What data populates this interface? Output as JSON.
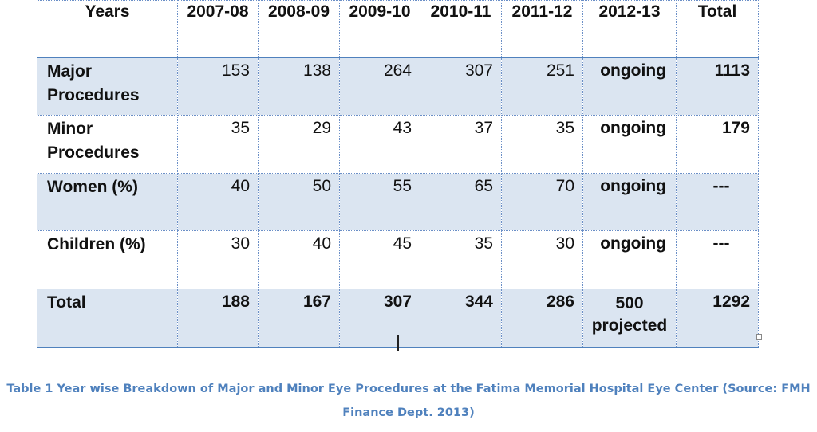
{
  "table": {
    "headers": [
      "Years",
      "2007-08",
      "2008-09",
      "2009-10",
      "2010-11",
      "2011-12",
      "2012-13",
      "Total"
    ],
    "rows": [
      {
        "label_line1": "Major",
        "label_line2": "Procedures",
        "values": [
          "153",
          "138",
          "264",
          "307",
          "251"
        ],
        "status": "ongoing",
        "total": "1113"
      },
      {
        "label_line1": "Minor",
        "label_line2": "Procedures",
        "values": [
          "35",
          "29",
          "43",
          "37",
          "35"
        ],
        "status": "ongoing",
        "total": "179"
      },
      {
        "label_line1": "Women (%)",
        "label_line2": "",
        "values": [
          "40",
          "50",
          "55",
          "65",
          "70"
        ],
        "status": "ongoing",
        "total": "---"
      },
      {
        "label_line1": "Children (%)",
        "label_line2": "",
        "values": [
          "30",
          "40",
          "45",
          "35",
          "30"
        ],
        "status": "ongoing",
        "total": "---"
      },
      {
        "label_line1": "Total",
        "label_line2": "",
        "values": [
          "188",
          "167",
          "307",
          "344",
          "286"
        ],
        "status_line1": "500",
        "status_line2": "projected",
        "total": "1292"
      }
    ]
  },
  "caption": {
    "line1": "Table 1 Year wise Breakdown of Major and Minor Eye Procedures at the Fatima Memorial Hospital Eye Center (Source: FMH",
    "line2": "Finance Dept. 2013)"
  },
  "colors": {
    "shade": "#dbe5f1",
    "border": "#4f81bd",
    "caption": "#4f81bd"
  }
}
